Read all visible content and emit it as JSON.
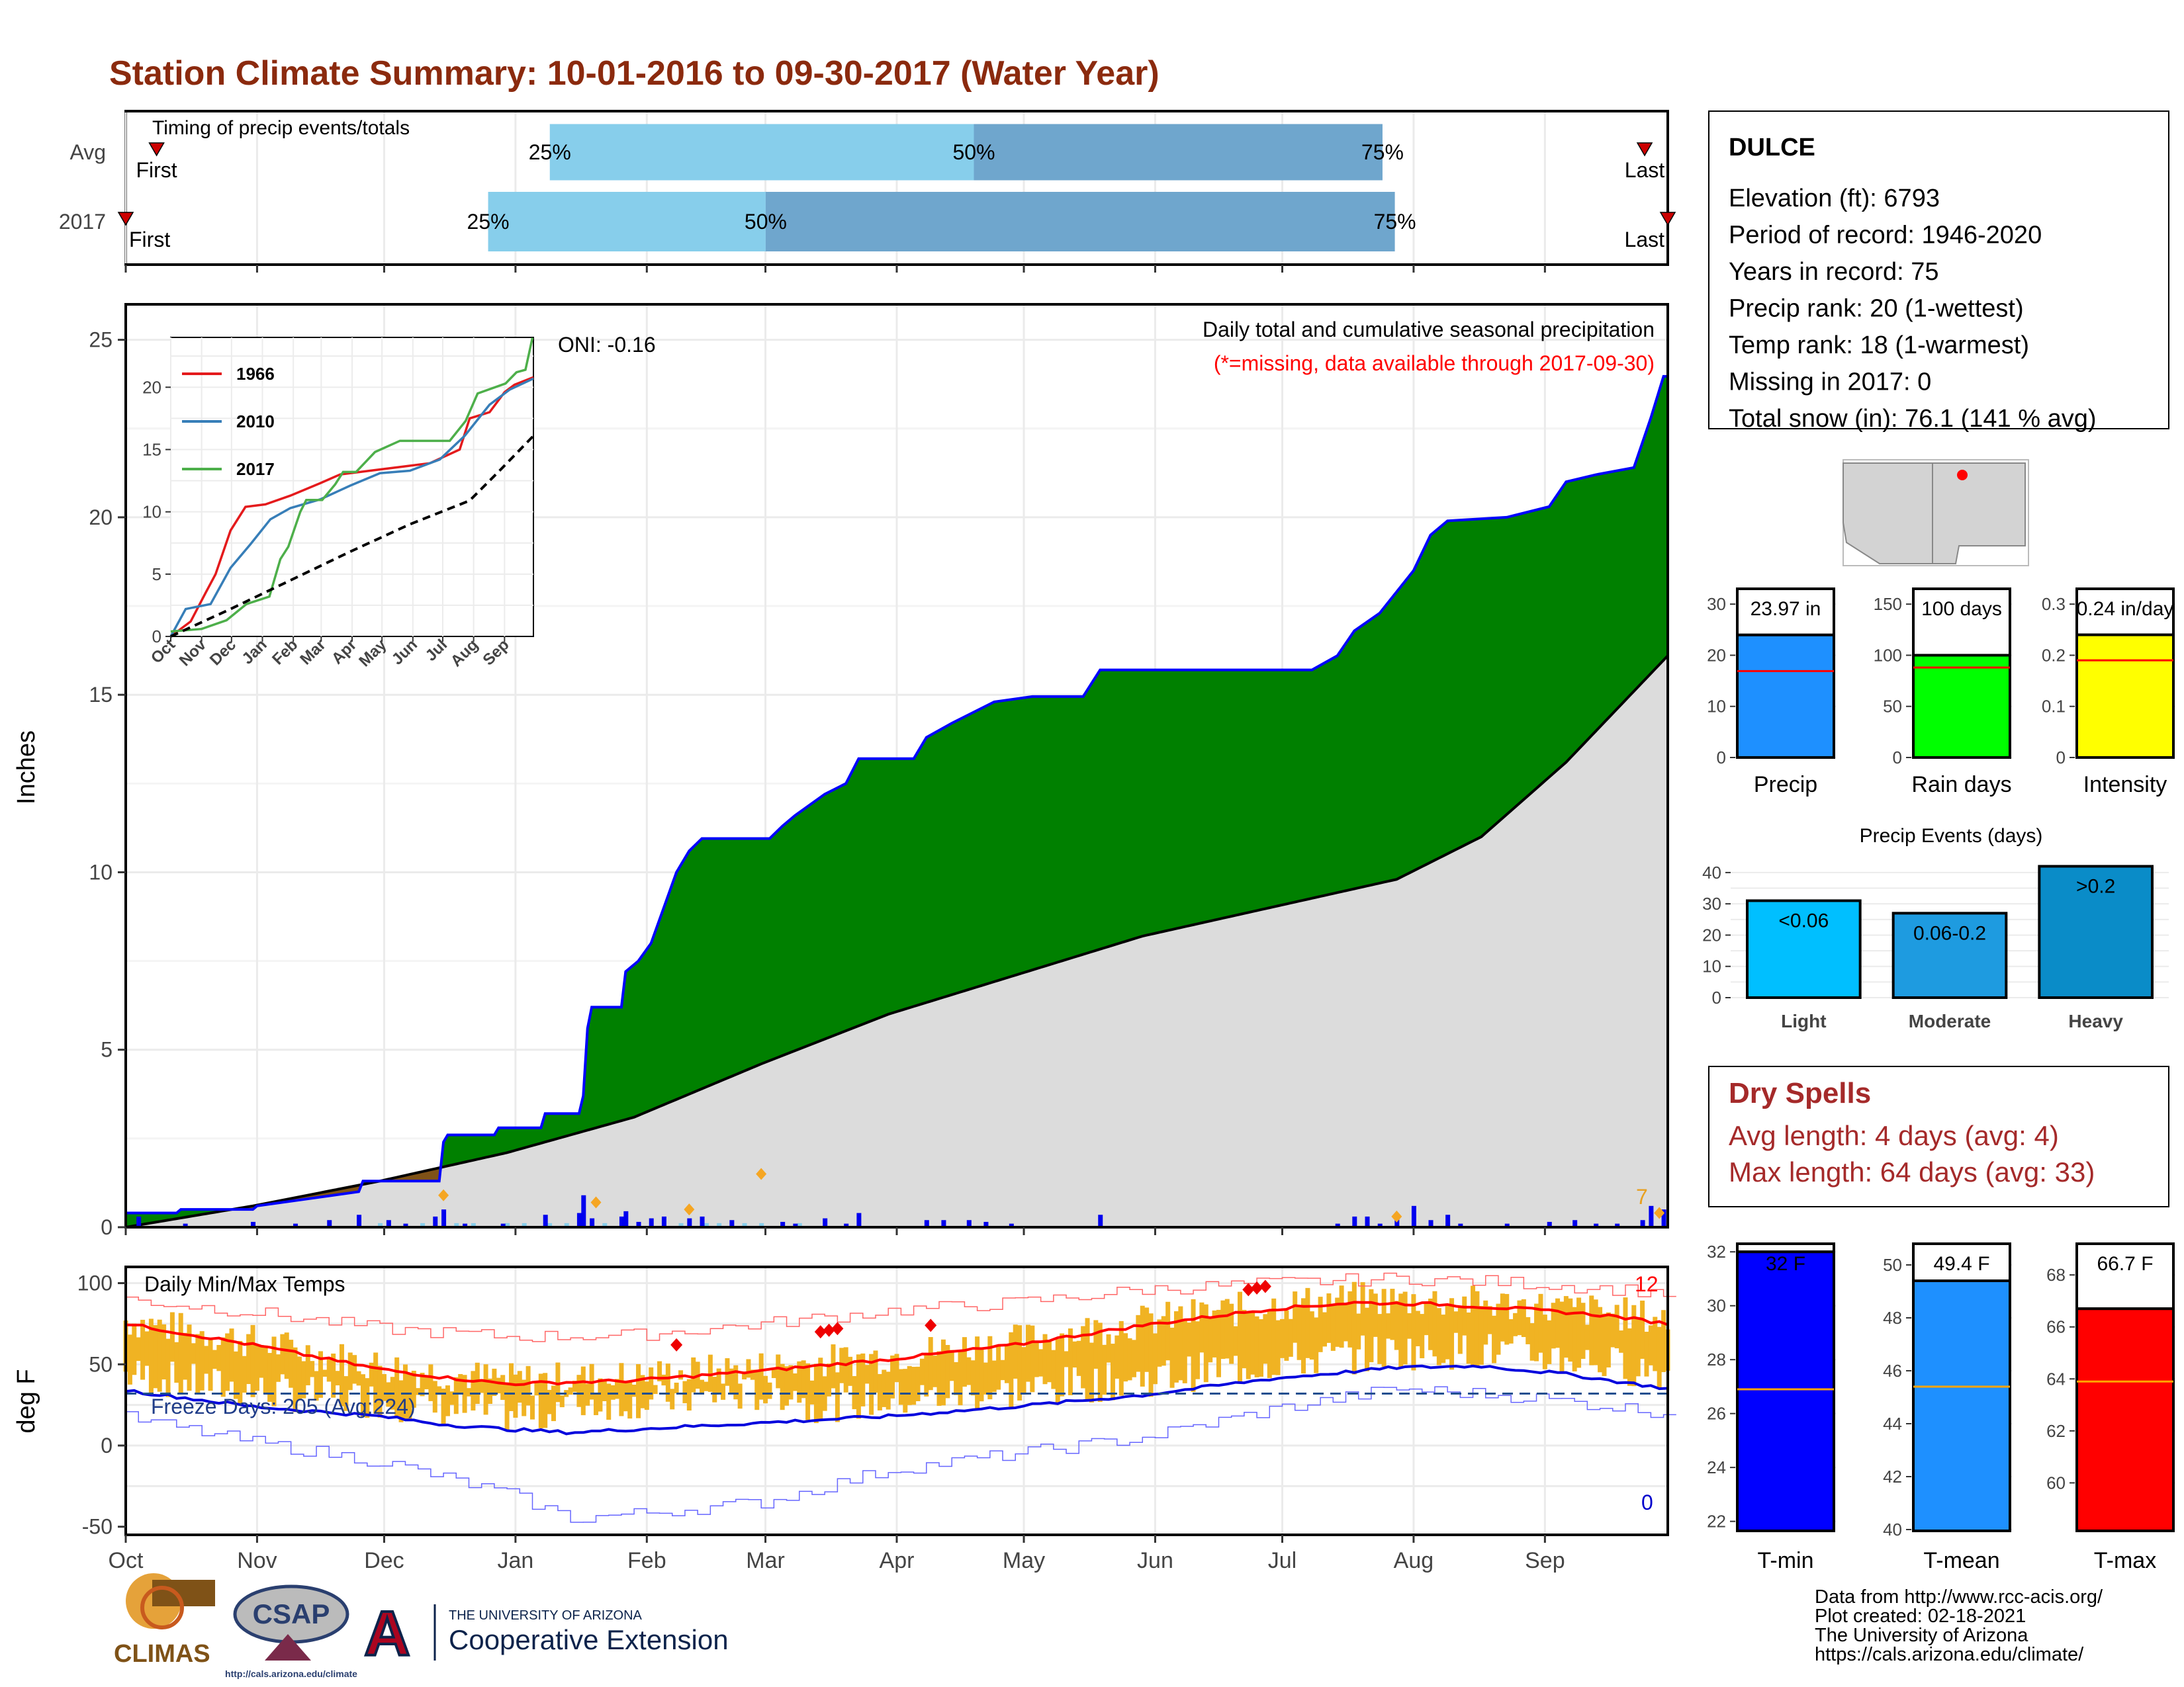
{
  "title": "Station Climate Summary: 10-01-2016 to 09-30-2017 (Water Year)",
  "colors": {
    "title": "#8B2A0E",
    "green": "#008000",
    "brown": "#7F5217",
    "grey_area": "#DCDCDC",
    "blue_line": "#0000FF",
    "light_blue": "#87CEEB",
    "steel_blue": "#6FA6CD",
    "orange": "#F5A623",
    "dry_spell": "#A52A2A",
    "tmin": "#0000FF",
    "tmean": "#1E90FF",
    "tmax": "#FF0000"
  },
  "timing": {
    "title": "Timing of precip events/totals",
    "rows": [
      {
        "label": "Avg",
        "first": "First",
        "last": "Last",
        "p25": "25%",
        "p50": "50%",
        "p75": "75%",
        "t_first": 0.02,
        "t_25": 0.275,
        "t_50": 0.55,
        "t_75": 0.815,
        "t_last": 0.985
      },
      {
        "label": "2017",
        "first": "First",
        "last": "Last",
        "p25": "25%",
        "p50": "50%",
        "p75": "75%",
        "t_first": 0.0,
        "t_25": 0.235,
        "t_50": 0.415,
        "t_75": 0.823,
        "t_last": 1.0
      }
    ]
  },
  "station": {
    "name": "DULCE",
    "lines": [
      "Elevation (ft): 6793",
      "Period of record: 1946-2020",
      "Years in record: 75",
      "Precip rank: 20 (1-wettest)",
      "Temp rank: 18 (1-warmest)",
      "Missing in 2017: 0",
      "Total snow (in): 76.1 (141 % avg)"
    ]
  },
  "precip": {
    "ylabel": "Inches",
    "yticks": [
      0,
      5,
      10,
      15,
      20,
      25
    ],
    "ylim": [
      0,
      26
    ],
    "subtitle": "Daily total and cumulative seasonal precipitation",
    "missing_note": "(*=missing, data available through 2017-09-30)",
    "oni": "ONI: -0.16",
    "corner_label": "7",
    "months": [
      "Oct",
      "Nov",
      "Dec",
      "Jan",
      "Feb",
      "Mar",
      "Apr",
      "May",
      "Jun",
      "Jul",
      "Aug",
      "Sep"
    ],
    "cumulative_2017": [
      [
        0,
        0.4
      ],
      [
        12,
        0.4
      ],
      [
        13,
        0.5
      ],
      [
        30,
        0.5
      ],
      [
        31,
        0.6
      ],
      [
        55,
        1.0
      ],
      [
        56,
        1.3
      ],
      [
        74,
        1.3
      ],
      [
        75,
        2.4
      ],
      [
        76,
        2.6
      ],
      [
        87,
        2.6
      ],
      [
        88,
        2.8
      ],
      [
        98,
        2.8
      ],
      [
        99,
        3.2
      ],
      [
        107,
        3.2
      ],
      [
        108,
        3.7
      ],
      [
        109,
        5.6
      ],
      [
        110,
        6.2
      ],
      [
        117,
        6.2
      ],
      [
        118,
        7.2
      ],
      [
        121,
        7.5
      ],
      [
        124,
        8.0
      ],
      [
        127,
        9.0
      ],
      [
        130,
        10.0
      ],
      [
        133,
        10.6
      ],
      [
        136,
        10.95
      ],
      [
        152,
        10.95
      ],
      [
        155,
        11.3
      ],
      [
        158,
        11.6
      ],
      [
        165,
        12.2
      ],
      [
        170,
        12.5
      ],
      [
        173,
        13.2
      ],
      [
        186,
        13.2
      ],
      [
        189,
        13.8
      ],
      [
        195,
        14.2
      ],
      [
        200,
        14.5
      ],
      [
        205,
        14.8
      ],
      [
        214,
        14.95
      ],
      [
        226,
        14.95
      ],
      [
        230,
        15.7
      ],
      [
        280,
        15.7
      ],
      [
        286,
        16.1
      ],
      [
        290,
        16.8
      ],
      [
        296,
        17.3
      ],
      [
        304,
        18.5
      ],
      [
        308,
        19.5
      ],
      [
        312,
        19.9
      ],
      [
        326,
        20.0
      ],
      [
        336,
        20.3
      ],
      [
        340,
        21.0
      ],
      [
        347,
        21.2
      ],
      [
        356,
        21.4
      ],
      [
        360,
        22.8
      ],
      [
        363,
        23.97
      ],
      [
        364,
        23.97
      ]
    ],
    "cumulative_avg": [
      [
        0,
        0.0
      ],
      [
        30,
        0.6
      ],
      [
        60,
        1.3
      ],
      [
        90,
        2.1
      ],
      [
        120,
        3.1
      ],
      [
        150,
        4.6
      ],
      [
        180,
        6.0
      ],
      [
        210,
        7.1
      ],
      [
        240,
        8.2
      ],
      [
        270,
        9.0
      ],
      [
        300,
        9.8
      ],
      [
        320,
        11.0
      ],
      [
        340,
        13.1
      ],
      [
        364,
        16.1
      ]
    ],
    "daily_bars": [
      [
        3,
        0.3
      ],
      [
        14,
        0.1
      ],
      [
        30,
        0.15
      ],
      [
        40,
        0.1
      ],
      [
        48,
        0.2
      ],
      [
        55,
        0.35
      ],
      [
        62,
        0.2
      ],
      [
        66,
        0.1
      ],
      [
        73,
        0.3
      ],
      [
        75,
        0.5
      ],
      [
        80,
        0.1
      ],
      [
        89,
        0.1
      ],
      [
        99,
        0.35
      ],
      [
        107,
        0.4
      ],
      [
        108,
        0.9
      ],
      [
        110,
        0.25
      ],
      [
        117,
        0.3
      ],
      [
        118,
        0.45
      ],
      [
        121,
        0.15
      ],
      [
        124,
        0.25
      ],
      [
        127,
        0.3
      ],
      [
        133,
        0.25
      ],
      [
        136,
        0.3
      ],
      [
        143,
        0.2
      ],
      [
        155,
        0.15
      ],
      [
        158,
        0.1
      ],
      [
        165,
        0.25
      ],
      [
        170,
        0.1
      ],
      [
        173,
        0.4
      ],
      [
        189,
        0.2
      ],
      [
        193,
        0.2
      ],
      [
        199,
        0.2
      ],
      [
        203,
        0.15
      ],
      [
        209,
        0.1
      ],
      [
        230,
        0.35
      ],
      [
        286,
        0.1
      ],
      [
        290,
        0.3
      ],
      [
        293,
        0.3
      ],
      [
        296,
        0.1
      ],
      [
        300,
        0.35
      ],
      [
        304,
        0.6
      ],
      [
        308,
        0.2
      ],
      [
        312,
        0.35
      ],
      [
        315,
        0.1
      ],
      [
        326,
        0.1
      ],
      [
        336,
        0.15
      ],
      [
        342,
        0.2
      ],
      [
        347,
        0.1
      ],
      [
        352,
        0.1
      ],
      [
        358,
        0.2
      ],
      [
        360,
        0.6
      ],
      [
        363,
        0.5
      ]
    ],
    "snow_days": [
      [
        60,
        0.04
      ],
      [
        70,
        0.04
      ],
      [
        78,
        0.04
      ],
      [
        82,
        0.04
      ],
      [
        90,
        0.04
      ],
      [
        94,
        0.04
      ],
      [
        100,
        0.04
      ],
      [
        104,
        0.04
      ],
      [
        113,
        0.04
      ],
      [
        121,
        0.04
      ],
      [
        131,
        0.04
      ],
      [
        137,
        0.04
      ],
      [
        140,
        0.04
      ],
      [
        146,
        0.04
      ],
      [
        150,
        0.04
      ],
      [
        159,
        0.04
      ]
    ],
    "orange_markers": [
      [
        75,
        0.9
      ],
      [
        111,
        0.7
      ],
      [
        133,
        0.5
      ],
      [
        150,
        1.5
      ],
      [
        300,
        0.3
      ],
      [
        362,
        0.4
      ]
    ]
  },
  "inset": {
    "yticks": [
      0,
      5,
      10,
      15,
      20
    ],
    "ylim": [
      0,
      24
    ],
    "months": [
      "Oct",
      "Nov",
      "Dec",
      "Jan",
      "Feb",
      "Mar",
      "Apr",
      "May",
      "Jun",
      "Jul",
      "Aug",
      "Sep"
    ],
    "series": [
      {
        "name": "1966",
        "color": "#E41A1C",
        "points": [
          [
            0,
            0
          ],
          [
            20,
            1.2
          ],
          [
            35,
            3.5
          ],
          [
            45,
            5.0
          ],
          [
            60,
            8.5
          ],
          [
            75,
            10.4
          ],
          [
            95,
            10.6
          ],
          [
            120,
            11.3
          ],
          [
            150,
            12.3
          ],
          [
            170,
            13.0
          ],
          [
            200,
            13.3
          ],
          [
            230,
            13.6
          ],
          [
            260,
            13.9
          ],
          [
            290,
            15.0
          ],
          [
            300,
            17.5
          ],
          [
            320,
            18.0
          ],
          [
            335,
            19.6
          ],
          [
            345,
            20.2
          ],
          [
            364,
            20.8
          ]
        ]
      },
      {
        "name": "2010",
        "color": "#377EB8",
        "points": [
          [
            0,
            0
          ],
          [
            15,
            2.2
          ],
          [
            40,
            2.6
          ],
          [
            60,
            5.5
          ],
          [
            80,
            7.4
          ],
          [
            100,
            9.4
          ],
          [
            120,
            10.3
          ],
          [
            150,
            11.0
          ],
          [
            180,
            12.1
          ],
          [
            210,
            13.1
          ],
          [
            240,
            13.3
          ],
          [
            270,
            14.2
          ],
          [
            295,
            16.1
          ],
          [
            320,
            18.6
          ],
          [
            340,
            19.8
          ],
          [
            364,
            20.7
          ]
        ]
      },
      {
        "name": "2017",
        "color": "#4DAF4A",
        "points": [
          [
            0,
            0.4
          ],
          [
            31,
            0.6
          ],
          [
            56,
            1.3
          ],
          [
            76,
            2.6
          ],
          [
            99,
            3.2
          ],
          [
            110,
            6.2
          ],
          [
            118,
            7.2
          ],
          [
            130,
            10.0
          ],
          [
            136,
            10.95
          ],
          [
            152,
            10.95
          ],
          [
            165,
            12.2
          ],
          [
            173,
            13.2
          ],
          [
            186,
            13.2
          ],
          [
            205,
            14.8
          ],
          [
            230,
            15.7
          ],
          [
            280,
            15.7
          ],
          [
            296,
            17.3
          ],
          [
            308,
            19.5
          ],
          [
            336,
            20.3
          ],
          [
            347,
            21.2
          ],
          [
            356,
            21.4
          ],
          [
            363,
            23.97
          ]
        ]
      },
      {
        "name": "",
        "color": "#000000",
        "dashed": true,
        "points": [
          [
            0,
            0
          ],
          [
            60,
            2.2
          ],
          [
            120,
            4.5
          ],
          [
            180,
            6.8
          ],
          [
            240,
            9.0
          ],
          [
            300,
            10.9
          ],
          [
            330,
            13.3
          ],
          [
            364,
            16.1
          ]
        ]
      }
    ]
  },
  "temps": {
    "ylabel": "deg F",
    "title": "Daily Min/Max Temps",
    "yticks": [
      -50,
      0,
      50,
      100
    ],
    "ylim": [
      -55,
      110
    ],
    "freeze_text": "Freeze Days: 205 (Avg:224)",
    "freeze_line": 32,
    "max_count_label": "12",
    "min_count_label": "0",
    "months": [
      "Oct",
      "Nov",
      "Dec",
      "Jan",
      "Feb",
      "Mar",
      "Apr",
      "May",
      "Jun",
      "Jul",
      "Aug",
      "Sep"
    ],
    "avg_max": [
      [
        0,
        75
      ],
      [
        30,
        62
      ],
      [
        60,
        47
      ],
      [
        75,
        42
      ],
      [
        90,
        38
      ],
      [
        120,
        40
      ],
      [
        150,
        46
      ],
      [
        180,
        53
      ],
      [
        210,
        62
      ],
      [
        240,
        74
      ],
      [
        270,
        84
      ],
      [
        290,
        88
      ],
      [
        310,
        87
      ],
      [
        330,
        84
      ],
      [
        350,
        80
      ],
      [
        364,
        75
      ]
    ],
    "avg_min": [
      [
        0,
        34
      ],
      [
        30,
        24
      ],
      [
        60,
        18
      ],
      [
        75,
        13
      ],
      [
        90,
        10
      ],
      [
        105,
        8
      ],
      [
        120,
        10
      ],
      [
        150,
        14
      ],
      [
        180,
        18
      ],
      [
        210,
        24
      ],
      [
        240,
        31
      ],
      [
        270,
        41
      ],
      [
        300,
        48
      ],
      [
        320,
        49
      ],
      [
        340,
        44
      ],
      [
        364,
        35
      ]
    ],
    "rec_max": [
      [
        0,
        90
      ],
      [
        30,
        82
      ],
      [
        60,
        72
      ],
      [
        90,
        67
      ],
      [
        120,
        68
      ],
      [
        150,
        75
      ],
      [
        180,
        83
      ],
      [
        210,
        88
      ],
      [
        240,
        96
      ],
      [
        270,
        100
      ],
      [
        300,
        103
      ],
      [
        330,
        100
      ],
      [
        364,
        94
      ]
    ],
    "rec_min": [
      [
        0,
        17
      ],
      [
        30,
        2
      ],
      [
        60,
        -10
      ],
      [
        90,
        -30
      ],
      [
        105,
        -45
      ],
      [
        120,
        -42
      ],
      [
        150,
        -35
      ],
      [
        180,
        -15
      ],
      [
        210,
        -5
      ],
      [
        240,
        5
      ],
      [
        270,
        22
      ],
      [
        300,
        35
      ],
      [
        330,
        30
      ],
      [
        364,
        20
      ]
    ],
    "record_highs": [
      [
        130,
        62
      ],
      [
        164,
        70
      ],
      [
        166,
        71
      ],
      [
        168,
        72
      ],
      [
        190,
        74
      ],
      [
        265,
        96
      ],
      [
        267,
        97
      ],
      [
        269,
        98
      ]
    ]
  },
  "stats": [
    {
      "label": "Precip",
      "value": 23.97,
      "text": "23.97 in",
      "avg": 16.9,
      "color": "#1E90FF",
      "yticks": [
        0,
        10,
        20,
        30
      ],
      "ymax": 33
    },
    {
      "label": "Rain days",
      "value": 100,
      "text": "100 days",
      "avg": 88,
      "color": "#00FF00",
      "yticks": [
        0,
        50,
        100,
        150
      ],
      "ymax": 165
    },
    {
      "label": "Intensity",
      "value": 0.24,
      "text": "0.24 in/day",
      "avg": 0.19,
      "color": "#FFFF00",
      "yticks": [
        0.0,
        0.1,
        0.2,
        0.3
      ],
      "ymax": 0.33
    }
  ],
  "events": {
    "title": "Precip Events (days)",
    "yticks": [
      0,
      10,
      20,
      30,
      40
    ],
    "ymax": 44,
    "bars": [
      {
        "label": "Light",
        "value": 31,
        "text": "<0.06",
        "color": "#00BFFF"
      },
      {
        "label": "Moderate",
        "value": 27,
        "text": "0.06-0.2",
        "color": "#1E9BE0"
      },
      {
        "label": "Heavy",
        "value": 42,
        "text": ">0.2",
        "color": "#0A8CC8"
      }
    ]
  },
  "dry_spells": {
    "title": "Dry Spells",
    "line1": "Avg length: 4 days (avg: 4)",
    "line2": "Max length: 64 days (avg: 33)"
  },
  "temp_bars": [
    {
      "label": "T-min",
      "value": 32,
      "text": "32 F",
      "avg": 26.9,
      "color": "#0000FF",
      "yticks": [
        22,
        24,
        26,
        28,
        30,
        32
      ],
      "ymin": 21.5,
      "ymax": 32.3
    },
    {
      "label": "T-mean",
      "value": 49.4,
      "text": "49.4 F",
      "avg": 45.4,
      "color": "#1E90FF",
      "yticks": [
        40,
        42,
        44,
        46,
        48,
        50
      ],
      "ymin": 39.8,
      "ymax": 50.8
    },
    {
      "label": "T-max",
      "value": 66.7,
      "text": "66.7 F",
      "avg": 63.9,
      "color": "#FF0000",
      "yticks": [
        60,
        62,
        64,
        66,
        68
      ],
      "ymin": 58.0,
      "ymax": 69.2
    }
  ],
  "footer": {
    "lines": [
      "Data from http://www.rcc-acis.org/",
      "Plot created: 02-18-2021",
      "The University of Arizona",
      "https://cals.arizona.edu/climate/"
    ],
    "logos": {
      "climas": "CLIMAS",
      "csap": "CSAP",
      "csap_url": "http://cals.arizona.edu/climate",
      "ua_small": "THE UNIVERSITY OF ARIZONA",
      "ua_big": "Cooperative Extension",
      "ua_letter": "A"
    }
  }
}
